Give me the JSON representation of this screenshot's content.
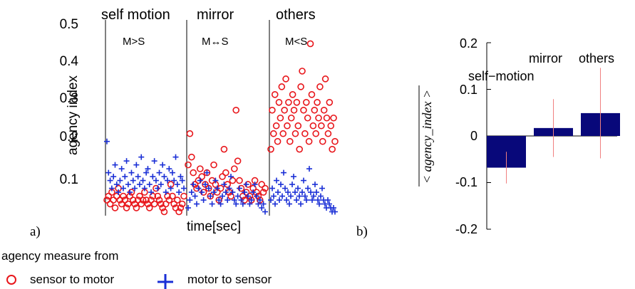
{
  "panel_a": {
    "label": "a)",
    "ylabel": "agency index",
    "xlabel": "time[sec]",
    "yticks": [
      "0.1",
      "0.2",
      "0.3",
      "0.4",
      "0.5"
    ],
    "subpanels": [
      {
        "title": "self motion",
        "relation": "M>S"
      },
      {
        "title": "mirror",
        "relation": "M↔S"
      },
      {
        "title": "others",
        "relation": "M<S"
      }
    ]
  },
  "panel_b": {
    "label": "b)",
    "ylabel": "< agency_index >",
    "yticks": [
      "-0.2",
      "-0.1",
      "0",
      "0.1",
      "0.2"
    ],
    "bar_labels": [
      "self−motion",
      "mirror",
      "others"
    ]
  },
  "legend": {
    "title": "agency measure from",
    "items": [
      {
        "label": "sensor to motor",
        "marker": "circle",
        "color": "#e8161b"
      },
      {
        "label": "motor to sensor",
        "marker": "plus",
        "color": "#1a2fd6"
      }
    ]
  },
  "colors": {
    "sensor_to_motor": "#e8161b",
    "motor_to_sensor": "#1a2fd6",
    "bar_fill": "#08087a",
    "errorbar": "#f08080"
  },
  "chart_data": [
    {
      "type": "scatter",
      "ylabel": "agency index",
      "xlabel": "time[sec]",
      "ylim": [
        0.01,
        0.5
      ],
      "subpanels": [
        {
          "title": "self motion",
          "relation": "M>S",
          "series": [
            {
              "name": "sensor to motor",
              "y": [
                0.05,
                0.06,
                0.04,
                0.07,
                0.05,
                0.03,
                0.06,
                0.08,
                0.05,
                0.04,
                0.06,
                0.05,
                0.03,
                0.04,
                0.06,
                0.07,
                0.05,
                0.04,
                0.03,
                0.05,
                0.06,
                0.04,
                0.05,
                0.07,
                0.05,
                0.04,
                0.03,
                0.05,
                0.06,
                0.04,
                0.08,
                0.06,
                0.05,
                0.04,
                0.03,
                0.02,
                0.04,
                0.06,
                0.05,
                0.09,
                0.06,
                0.04,
                0.03,
                0.05,
                0.02,
                0.03,
                0.04,
                0.06
              ]
            },
            {
              "name": "motor to sensor",
              "y": [
                0.2,
                0.12,
                0.1,
                0.08,
                0.11,
                0.14,
                0.09,
                0.07,
                0.1,
                0.13,
                0.08,
                0.11,
                0.15,
                0.09,
                0.07,
                0.12,
                0.1,
                0.08,
                0.14,
                0.11,
                0.09,
                0.16,
                0.1,
                0.08,
                0.12,
                0.13,
                0.09,
                0.07,
                0.11,
                0.15,
                0.1,
                0.08,
                0.12,
                0.09,
                0.14,
                0.11,
                0.07,
                0.1,
                0.13,
                0.08,
                0.12,
                0.1,
                0.16,
                0.09,
                0.07,
                0.11,
                0.1,
                0.08
              ]
            }
          ]
        },
        {
          "title": "mirror",
          "relation": "M↔S",
          "series": [
            {
              "name": "sensor to motor",
              "y": [
                0.14,
                0.22,
                0.16,
                0.12,
                0.09,
                0.08,
                0.1,
                0.13,
                0.11,
                0.07,
                0.09,
                0.12,
                0.08,
                0.06,
                0.1,
                0.14,
                0.09,
                0.07,
                0.05,
                0.08,
                0.11,
                0.18,
                0.12,
                0.09,
                0.07,
                0.06,
                0.1,
                0.13,
                0.28,
                0.15,
                0.1,
                0.08,
                0.06,
                0.05,
                0.07,
                0.09,
                0.06,
                0.05,
                0.08,
                0.1,
                0.07,
                0.06,
                0.05,
                0.09,
                0.07,
                0.08
              ]
            },
            {
              "name": "motor to sensor",
              "y": [
                0.03,
                0.05,
                0.07,
                0.09,
                0.06,
                0.04,
                0.08,
                0.1,
                0.07,
                0.05,
                0.09,
                0.12,
                0.08,
                0.06,
                0.04,
                0.07,
                0.1,
                0.08,
                0.05,
                0.04,
                0.06,
                0.09,
                0.07,
                0.05,
                0.08,
                0.11,
                0.07,
                0.05,
                0.04,
                0.06,
                0.08,
                0.05,
                0.04,
                0.07,
                0.09,
                0.06,
                0.04,
                0.05,
                0.07,
                0.09,
                0.06,
                0.04,
                0.05,
                0.03,
                0.04,
                0.02
              ]
            }
          ]
        },
        {
          "title": "others",
          "relation": "M<S",
          "series": [
            {
              "name": "sensor to motor",
              "y": [
                0.18,
                0.28,
                0.22,
                0.32,
                0.24,
                0.2,
                0.3,
                0.26,
                0.34,
                0.22,
                0.28,
                0.36,
                0.24,
                0.3,
                0.2,
                0.26,
                0.32,
                0.28,
                0.22,
                0.3,
                0.24,
                0.18,
                0.34,
                0.38,
                0.28,
                0.22,
                0.3,
                0.26,
                0.2,
                0.45,
                0.32,
                0.24,
                0.28,
                0.22,
                0.3,
                0.26,
                0.34,
                0.24,
                0.2,
                0.28,
                0.36,
                0.26,
                0.22,
                0.3,
                0.24,
                0.18,
                0.26,
                0.2
              ]
            },
            {
              "name": "motor to sensor",
              "y": [
                0.05,
                0.08,
                0.06,
                0.04,
                0.1,
                0.07,
                0.05,
                0.09,
                0.06,
                0.12,
                0.08,
                0.05,
                0.07,
                0.04,
                0.06,
                0.09,
                0.11,
                0.07,
                0.05,
                0.08,
                0.06,
                0.04,
                0.07,
                0.1,
                0.06,
                0.05,
                0.08,
                0.13,
                0.07,
                0.05,
                0.06,
                0.09,
                0.07,
                0.05,
                0.04,
                0.06,
                0.08,
                0.05,
                0.04,
                0.03,
                0.05,
                0.04,
                0.03,
                0.02,
                0.03,
                0.02
              ]
            }
          ]
        }
      ]
    },
    {
      "type": "bar",
      "ylabel": "< agency_index >",
      "ylim": [
        -0.2,
        0.2
      ],
      "categories": [
        "self−motion",
        "mirror",
        "others"
      ],
      "values": [
        -0.068,
        0.017,
        0.049
      ],
      "error": [
        0.034,
        0.062,
        0.097
      ]
    }
  ]
}
